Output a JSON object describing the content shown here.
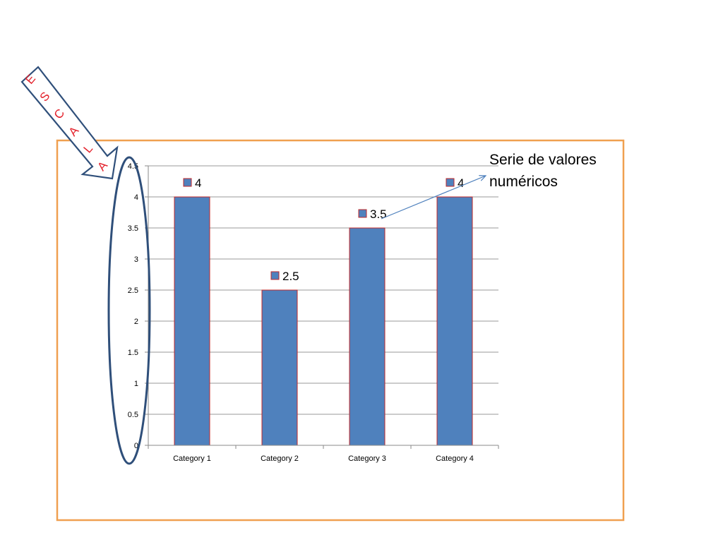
{
  "colors": {
    "bar_fill": "#4f81bd",
    "bar_stroke": "#c0282a",
    "frame": "#f0a050",
    "grid": "#9a9a9a",
    "axis": "#8a8a8a",
    "ellipse": "#2f4f7a",
    "arrow_stroke": "#2f4f7a",
    "escala_text": "#e3202a",
    "callout_arrow": "#4f81bd"
  },
  "chart_data": {
    "type": "bar",
    "categories": [
      "Category 1",
      "Category 2",
      "Category 3",
      "Category 4"
    ],
    "values": [
      4,
      2.5,
      3.5,
      4
    ],
    "data_labels": [
      "4",
      "2.5",
      "3.5",
      "4"
    ],
    "ylim": [
      0,
      4.5
    ],
    "yticks": [
      "0",
      "0.5",
      "1",
      "1.5",
      "2",
      "2.5",
      "3",
      "3.5",
      "4",
      "4.5"
    ],
    "grid": true,
    "title": "",
    "xlabel": "",
    "ylabel": ""
  },
  "annotations": {
    "escala_letters": [
      "E",
      "S",
      "C",
      "A",
      "L",
      "A"
    ],
    "callout_lines": [
      "Serie de valores",
      "numéricos"
    ]
  }
}
